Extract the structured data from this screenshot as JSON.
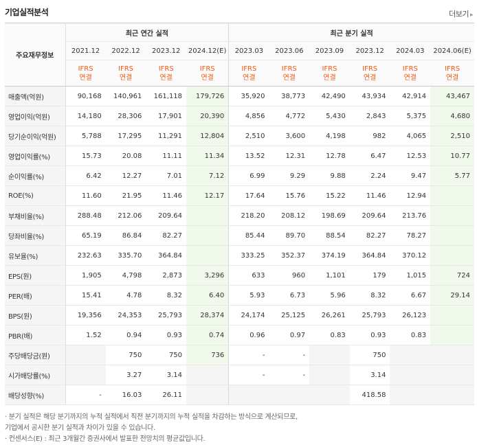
{
  "title": "기업실적분석",
  "more_label": "더보기",
  "corner_label": "주요재무정보",
  "groups": {
    "annual": "최근 연간 실적",
    "quarter": "최근 분기 실적"
  },
  "periods": [
    "2021.12",
    "2022.12",
    "2023.12",
    "2024.12(E)",
    "2023.03",
    "2023.06",
    "2023.09",
    "2023.12",
    "2024.03",
    "2024.06(E)"
  ],
  "ifrs_top": "IFRS",
  "ifrs_bottom": "연결",
  "rows": [
    {
      "label": "매출액(억원)",
      "values": [
        "90,168",
        "140,961",
        "161,118",
        "179,726",
        "35,920",
        "38,773",
        "42,490",
        "43,934",
        "42,914",
        "43,467"
      ]
    },
    {
      "label": "영업이익(억원)",
      "values": [
        "14,180",
        "28,306",
        "17,901",
        "20,390",
        "4,856",
        "4,772",
        "5,430",
        "2,843",
        "5,375",
        "4,680"
      ]
    },
    {
      "label": "당기순이익(억원)",
      "values": [
        "5,788",
        "17,295",
        "11,291",
        "12,804",
        "2,510",
        "3,600",
        "4,198",
        "982",
        "4,065",
        "2,510"
      ]
    },
    {
      "label": "영업이익률(%)",
      "values": [
        "15.73",
        "20.08",
        "11.11",
        "11.34",
        "13.52",
        "12.31",
        "12.78",
        "6.47",
        "12.53",
        "10.77"
      ]
    },
    {
      "label": "순이익률(%)",
      "values": [
        "6.42",
        "12.27",
        "7.01",
        "7.12",
        "6.99",
        "9.29",
        "9.88",
        "2.24",
        "9.47",
        "5.77"
      ]
    },
    {
      "label": "ROE(%)",
      "values": [
        "11.60",
        "21.95",
        "11.46",
        "12.17",
        "17.64",
        "15.76",
        "15.22",
        "11.46",
        "12.94",
        ""
      ]
    },
    {
      "label": "부채비율(%)",
      "values": [
        "288.48",
        "212.06",
        "209.64",
        "",
        "218.20",
        "208.12",
        "198.69",
        "209.64",
        "213.76",
        ""
      ]
    },
    {
      "label": "당좌비율(%)",
      "values": [
        "65.19",
        "86.84",
        "82.27",
        "",
        "85.44",
        "89.70",
        "88.54",
        "82.27",
        "78.27",
        ""
      ]
    },
    {
      "label": "유보율(%)",
      "values": [
        "232.63",
        "335.70",
        "364.84",
        "",
        "333.25",
        "352.37",
        "374.19",
        "364.84",
        "370.12",
        ""
      ]
    },
    {
      "label": "EPS(원)",
      "values": [
        "1,905",
        "4,798",
        "2,873",
        "3,296",
        "633",
        "960",
        "1,101",
        "179",
        "1,015",
        "724"
      ]
    },
    {
      "label": "PER(배)",
      "values": [
        "15.41",
        "4.78",
        "8.32",
        "6.40",
        "5.93",
        "6.73",
        "5.96",
        "8.32",
        "6.67",
        "29.14"
      ]
    },
    {
      "label": "BPS(원)",
      "values": [
        "19,356",
        "24,353",
        "25,793",
        "28,374",
        "24,174",
        "25,125",
        "26,261",
        "25,793",
        "26,123",
        ""
      ]
    },
    {
      "label": "PBR(배)",
      "values": [
        "1.52",
        "0.94",
        "0.93",
        "0.74",
        "0.96",
        "0.97",
        "0.83",
        "0.93",
        "0.83",
        ""
      ]
    },
    {
      "label": "주당배당금(원)",
      "values": [
        "",
        "750",
        "750",
        "736",
        "-",
        "-",
        "",
        "750",
        "",
        ""
      ]
    },
    {
      "label": "시가배당률(%)",
      "values": [
        "",
        "3.27",
        "3.14",
        "",
        "-",
        "-",
        "",
        "3.14",
        "",
        ""
      ]
    },
    {
      "label": "배당성향(%)",
      "values": [
        "-",
        "16.03",
        "26.11",
        "",
        "",
        "",
        "",
        "418.58",
        "",
        ""
      ]
    }
  ],
  "notes": [
    "· 분기 실적은 해당 분기까지의 누적 실적에서 직전 분기까지의 누적 실적을 차감하는 방식으로 계산되므로,",
    "  기업에서 공시한 분기 실적과 차이가 있을 수 있습니다.",
    "· 컨센서스(E) : 최근 3개월간 증권사에서 발표한 전망치의 평균값입니다."
  ]
}
